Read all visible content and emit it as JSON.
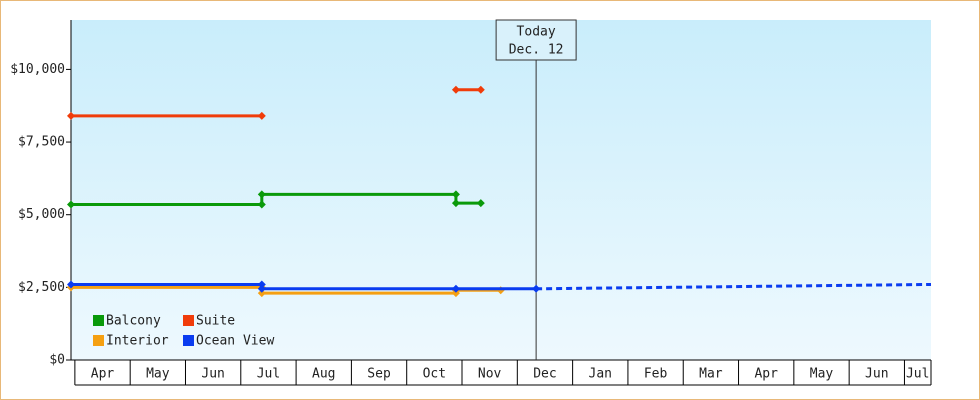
{
  "chart_data": {
    "type": "line",
    "categories": [
      "Apr",
      "May",
      "Jun",
      "Jul",
      "Aug",
      "Sep",
      "Oct",
      "Nov",
      "Dec",
      "Jan",
      "Feb",
      "Mar",
      "Apr",
      "May",
      "Jun",
      "Jul"
    ],
    "xlim": [
      -0.07,
      15.48
    ],
    "ylim": [
      0,
      11700
    ],
    "yticks": [
      {
        "value": 0,
        "label": "$0"
      },
      {
        "value": 2500,
        "label": "$2,500"
      },
      {
        "value": 5000,
        "label": "$5,000"
      },
      {
        "value": 7500,
        "label": "$7,500"
      },
      {
        "value": 10000,
        "label": "$10,000"
      }
    ],
    "today": {
      "x": 8.34,
      "label": "Today",
      "date": "Dec. 12"
    },
    "legend": "lower left",
    "series": [
      {
        "name": "Balcony",
        "color": "#0a9a0a",
        "x": [
          -0.07,
          3.38,
          3.38,
          6.89,
          6.89,
          7.34
        ],
        "values": [
          5350,
          5350,
          5700,
          5700,
          5400,
          5400
        ]
      },
      {
        "name": "Suite",
        "color": "#f03c0a",
        "x": [
          -0.07,
          3.38,
          null,
          6.89,
          7.34
        ],
        "values": [
          8400,
          8400,
          null,
          9300,
          9300
        ]
      },
      {
        "name": "Interior",
        "color": "#f5a012",
        "x": [
          -0.07,
          3.38,
          3.38,
          6.89,
          6.89,
          7.7
        ],
        "values": [
          2500,
          2500,
          2300,
          2300,
          2400,
          2400
        ]
      },
      {
        "name": "Ocean View",
        "color": "#0a3cf0",
        "x": [
          -0.07,
          3.38,
          3.38,
          6.89,
          8.34
        ],
        "values": [
          2600,
          2600,
          2450,
          2450,
          2450
        ],
        "forecast_x": [
          8.34,
          15.48
        ],
        "forecast_values": [
          2450,
          2600
        ]
      }
    ]
  }
}
